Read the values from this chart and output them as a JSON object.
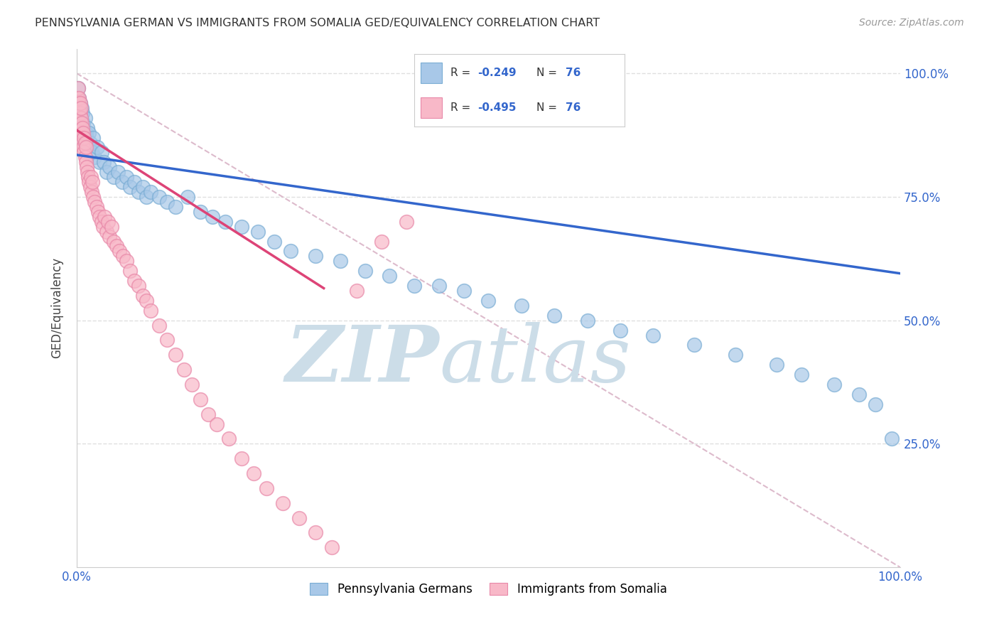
{
  "title": "PENNSYLVANIA GERMAN VS IMMIGRANTS FROM SOMALIA GED/EQUIVALENCY CORRELATION CHART",
  "source": "Source: ZipAtlas.com",
  "ylabel": "GED/Equivalency",
  "legend_blue_series": "Pennsylvania Germans",
  "legend_pink_series": "Immigrants from Somalia",
  "blue_color": "#a8c8e8",
  "blue_edge_color": "#7aadd4",
  "pink_color": "#f8b8c8",
  "pink_edge_color": "#e888a8",
  "line_blue": "#3366cc",
  "line_pink": "#dd4477",
  "diag_color": "#ddbbcc",
  "watermark": "ZIPatlas",
  "watermark_color": "#ccdde8",
  "background_color": "#ffffff",
  "grid_color": "#e0e0e0",
  "blue_line_x0": 0.0,
  "blue_line_y0": 0.835,
  "blue_line_x1": 1.0,
  "blue_line_y1": 0.595,
  "pink_line_x0": 0.0,
  "pink_line_y0": 0.885,
  "pink_line_x1": 0.3,
  "pink_line_y1": 0.565,
  "xlim": [
    0.0,
    1.0
  ],
  "ylim": [
    0.0,
    1.05
  ],
  "blue_scatter_x": [
    0.001,
    0.002,
    0.002,
    0.003,
    0.003,
    0.003,
    0.004,
    0.004,
    0.005,
    0.005,
    0.006,
    0.006,
    0.007,
    0.007,
    0.008,
    0.008,
    0.009,
    0.01,
    0.01,
    0.011,
    0.012,
    0.013,
    0.014,
    0.015,
    0.016,
    0.018,
    0.02,
    0.022,
    0.025,
    0.028,
    0.03,
    0.033,
    0.036,
    0.04,
    0.045,
    0.05,
    0.055,
    0.06,
    0.065,
    0.07,
    0.075,
    0.08,
    0.085,
    0.09,
    0.1,
    0.11,
    0.12,
    0.135,
    0.15,
    0.165,
    0.18,
    0.2,
    0.22,
    0.24,
    0.26,
    0.29,
    0.32,
    0.35,
    0.38,
    0.41,
    0.44,
    0.47,
    0.5,
    0.54,
    0.58,
    0.62,
    0.66,
    0.7,
    0.75,
    0.8,
    0.85,
    0.88,
    0.92,
    0.95,
    0.97,
    0.99
  ],
  "blue_scatter_y": [
    0.88,
    0.92,
    0.97,
    0.88,
    0.92,
    0.95,
    0.9,
    0.94,
    0.88,
    0.91,
    0.87,
    0.93,
    0.89,
    0.92,
    0.87,
    0.9,
    0.88,
    0.86,
    0.91,
    0.88,
    0.87,
    0.89,
    0.85,
    0.88,
    0.86,
    0.84,
    0.87,
    0.83,
    0.85,
    0.82,
    0.84,
    0.82,
    0.8,
    0.81,
    0.79,
    0.8,
    0.78,
    0.79,
    0.77,
    0.78,
    0.76,
    0.77,
    0.75,
    0.76,
    0.75,
    0.74,
    0.73,
    0.75,
    0.72,
    0.71,
    0.7,
    0.69,
    0.68,
    0.66,
    0.64,
    0.63,
    0.62,
    0.6,
    0.59,
    0.57,
    0.57,
    0.56,
    0.54,
    0.53,
    0.51,
    0.5,
    0.48,
    0.47,
    0.45,
    0.43,
    0.41,
    0.39,
    0.37,
    0.35,
    0.33,
    0.26
  ],
  "pink_scatter_x": [
    0.001,
    0.001,
    0.002,
    0.002,
    0.002,
    0.003,
    0.003,
    0.003,
    0.004,
    0.004,
    0.004,
    0.005,
    0.005,
    0.005,
    0.006,
    0.006,
    0.007,
    0.007,
    0.008,
    0.008,
    0.009,
    0.009,
    0.01,
    0.01,
    0.011,
    0.011,
    0.012,
    0.013,
    0.014,
    0.015,
    0.016,
    0.017,
    0.018,
    0.019,
    0.02,
    0.022,
    0.024,
    0.026,
    0.028,
    0.03,
    0.032,
    0.034,
    0.036,
    0.038,
    0.04,
    0.042,
    0.045,
    0.048,
    0.052,
    0.056,
    0.06,
    0.065,
    0.07,
    0.075,
    0.08,
    0.085,
    0.09,
    0.1,
    0.11,
    0.12,
    0.13,
    0.14,
    0.15,
    0.16,
    0.17,
    0.185,
    0.2,
    0.215,
    0.23,
    0.25,
    0.27,
    0.29,
    0.31,
    0.34,
    0.37,
    0.4
  ],
  "pink_scatter_y": [
    0.93,
    0.95,
    0.92,
    0.94,
    0.97,
    0.9,
    0.93,
    0.95,
    0.89,
    0.92,
    0.94,
    0.88,
    0.91,
    0.93,
    0.87,
    0.9,
    0.86,
    0.89,
    0.85,
    0.88,
    0.84,
    0.87,
    0.83,
    0.86,
    0.82,
    0.85,
    0.81,
    0.8,
    0.79,
    0.78,
    0.77,
    0.79,
    0.76,
    0.78,
    0.75,
    0.74,
    0.73,
    0.72,
    0.71,
    0.7,
    0.69,
    0.71,
    0.68,
    0.7,
    0.67,
    0.69,
    0.66,
    0.65,
    0.64,
    0.63,
    0.62,
    0.6,
    0.58,
    0.57,
    0.55,
    0.54,
    0.52,
    0.49,
    0.46,
    0.43,
    0.4,
    0.37,
    0.34,
    0.31,
    0.29,
    0.26,
    0.22,
    0.19,
    0.16,
    0.13,
    0.1,
    0.07,
    0.04,
    0.56,
    0.66,
    0.7
  ]
}
